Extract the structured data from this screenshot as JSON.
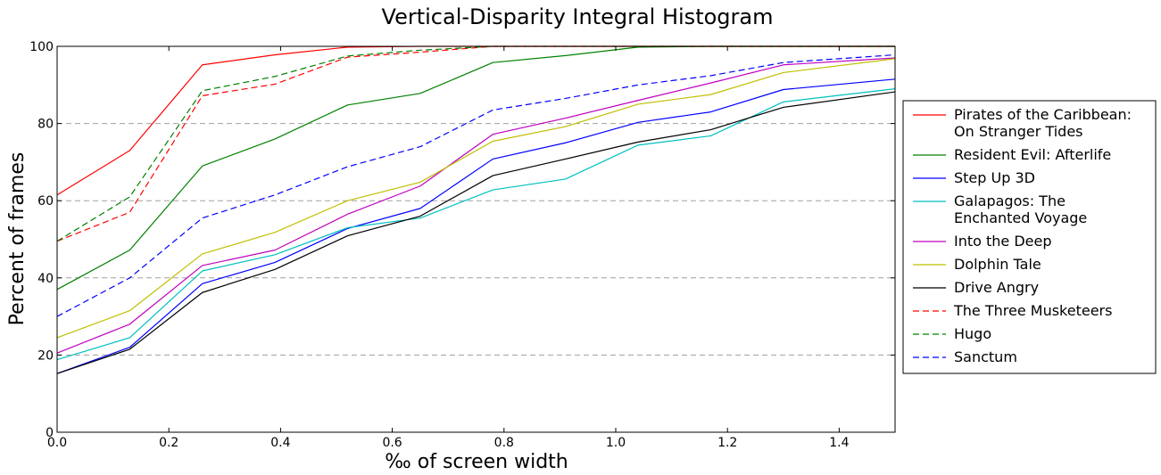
{
  "chart_data": {
    "type": "line",
    "title": "Vertical-Disparity Integral Histogram",
    "xlabel": "‰ of screen width",
    "ylabel": "Percent of frames",
    "xlim": [
      0,
      1.5
    ],
    "ylim": [
      0,
      100
    ],
    "xticks": [
      "0.0",
      "0.2",
      "0.4",
      "0.6",
      "0.8",
      "1.0",
      "1.2",
      "1.4"
    ],
    "xtick_values": [
      0,
      0.2,
      0.4,
      0.6,
      0.8,
      1.0,
      1.2,
      1.4
    ],
    "yticks": [
      "0",
      "20",
      "40",
      "60",
      "80",
      "100"
    ],
    "ytick_values": [
      0,
      20,
      40,
      60,
      80,
      100
    ],
    "grid": "horizontal dashed",
    "legend_position": "right",
    "x": [
      0,
      0.13,
      0.26,
      0.39,
      0.52,
      0.65,
      0.78,
      0.91,
      1.04,
      1.17,
      1.3,
      1.5
    ],
    "series": [
      {
        "name": "Pirates of the Caribbean:\nOn Stranger Tides",
        "color": "#ff0000",
        "style": "solid",
        "values": [
          61.5,
          73,
          95.2,
          97.8,
          99.8,
          100,
          100,
          100,
          100,
          100,
          100,
          100
        ]
      },
      {
        "name": "Resident Evil: Afterlife",
        "color": "#008000",
        "style": "solid",
        "values": [
          37,
          47.2,
          69,
          76,
          84.8,
          87.8,
          95.8,
          97.6,
          99.8,
          100,
          100,
          100
        ]
      },
      {
        "name": "Step Up 3D",
        "color": "#0000ff",
        "style": "solid",
        "values": [
          15.2,
          22,
          38.5,
          44,
          52.8,
          58,
          70.8,
          75,
          80.3,
          83,
          88.8,
          91.5
        ]
      },
      {
        "name": "Galapagos: The\nEnchanted Voyage",
        "color": "#00bfbf",
        "style": "solid",
        "values": [
          18.8,
          24.5,
          41.8,
          46,
          53,
          55.5,
          62.8,
          65.6,
          74.4,
          76.8,
          85.6,
          89
        ]
      },
      {
        "name": "Into the Deep",
        "color": "#bf00bf",
        "style": "solid",
        "values": [
          20.5,
          28,
          43.2,
          47.2,
          56.5,
          63.8,
          77.2,
          81.4,
          86,
          90.5,
          95.2,
          97
        ]
      },
      {
        "name": "Dolphin Tale",
        "color": "#bfbf00",
        "style": "solid",
        "values": [
          24.5,
          31.5,
          46.2,
          51.8,
          60,
          64.8,
          75.4,
          79.2,
          85,
          87.5,
          93.2,
          96.8
        ]
      },
      {
        "name": "Drive Angry",
        "color": "#000000",
        "style": "solid",
        "values": [
          15.2,
          21.5,
          36.2,
          42.2,
          50.9,
          56,
          66.5,
          70.8,
          75.2,
          78.4,
          84.2,
          88.2
        ]
      },
      {
        "name": "The Three Musketeers",
        "color": "#ff0000",
        "style": "dashed",
        "values": [
          49.5,
          57,
          87.2,
          90.2,
          97.2,
          98.5,
          100,
          100,
          100,
          100,
          100,
          100
        ]
      },
      {
        "name": "Hugo",
        "color": "#008000",
        "style": "dashed",
        "values": [
          49.5,
          61,
          88.5,
          92.2,
          97.5,
          99,
          100,
          100,
          100,
          100,
          100,
          100
        ]
      },
      {
        "name": "Sanctum",
        "color": "#0000ff",
        "style": "dashed",
        "values": [
          30,
          40,
          55.5,
          61.5,
          68.8,
          74,
          83.5,
          86.5,
          90,
          92.4,
          95.8,
          97.8
        ]
      }
    ]
  }
}
